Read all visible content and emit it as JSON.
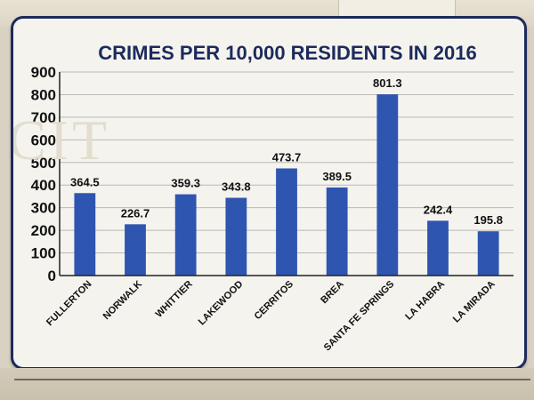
{
  "chart_data": {
    "type": "bar",
    "title": "CRIMES PER 10,000 RESIDENTS IN 2016",
    "categories": [
      "FULLERTON",
      "NORWALK",
      "WHITTIER",
      "LAKEWOOD",
      "CERRITOS",
      "BREA",
      "SANTA FE SPRINGS",
      "LA HABRA",
      "LA MIRADA"
    ],
    "values": [
      364.5,
      226.7,
      359.3,
      343.8,
      473.7,
      389.5,
      801.3,
      242.4,
      195.8
    ],
    "data_labels": [
      "364.5",
      "226.7",
      "359.3",
      "343.8",
      "473.7",
      "389.5",
      "801.3",
      "242.4",
      "195.8"
    ],
    "yticks": [
      0,
      100,
      200,
      300,
      400,
      500,
      600,
      700,
      800,
      900
    ],
    "ylim": [
      0,
      900
    ],
    "xlabel": "",
    "ylabel": "",
    "grid": true,
    "legend": "none",
    "bar_color": "#2e56b0",
    "title_color": "#1c2a5c",
    "frame_color": "#1c2a5c"
  }
}
